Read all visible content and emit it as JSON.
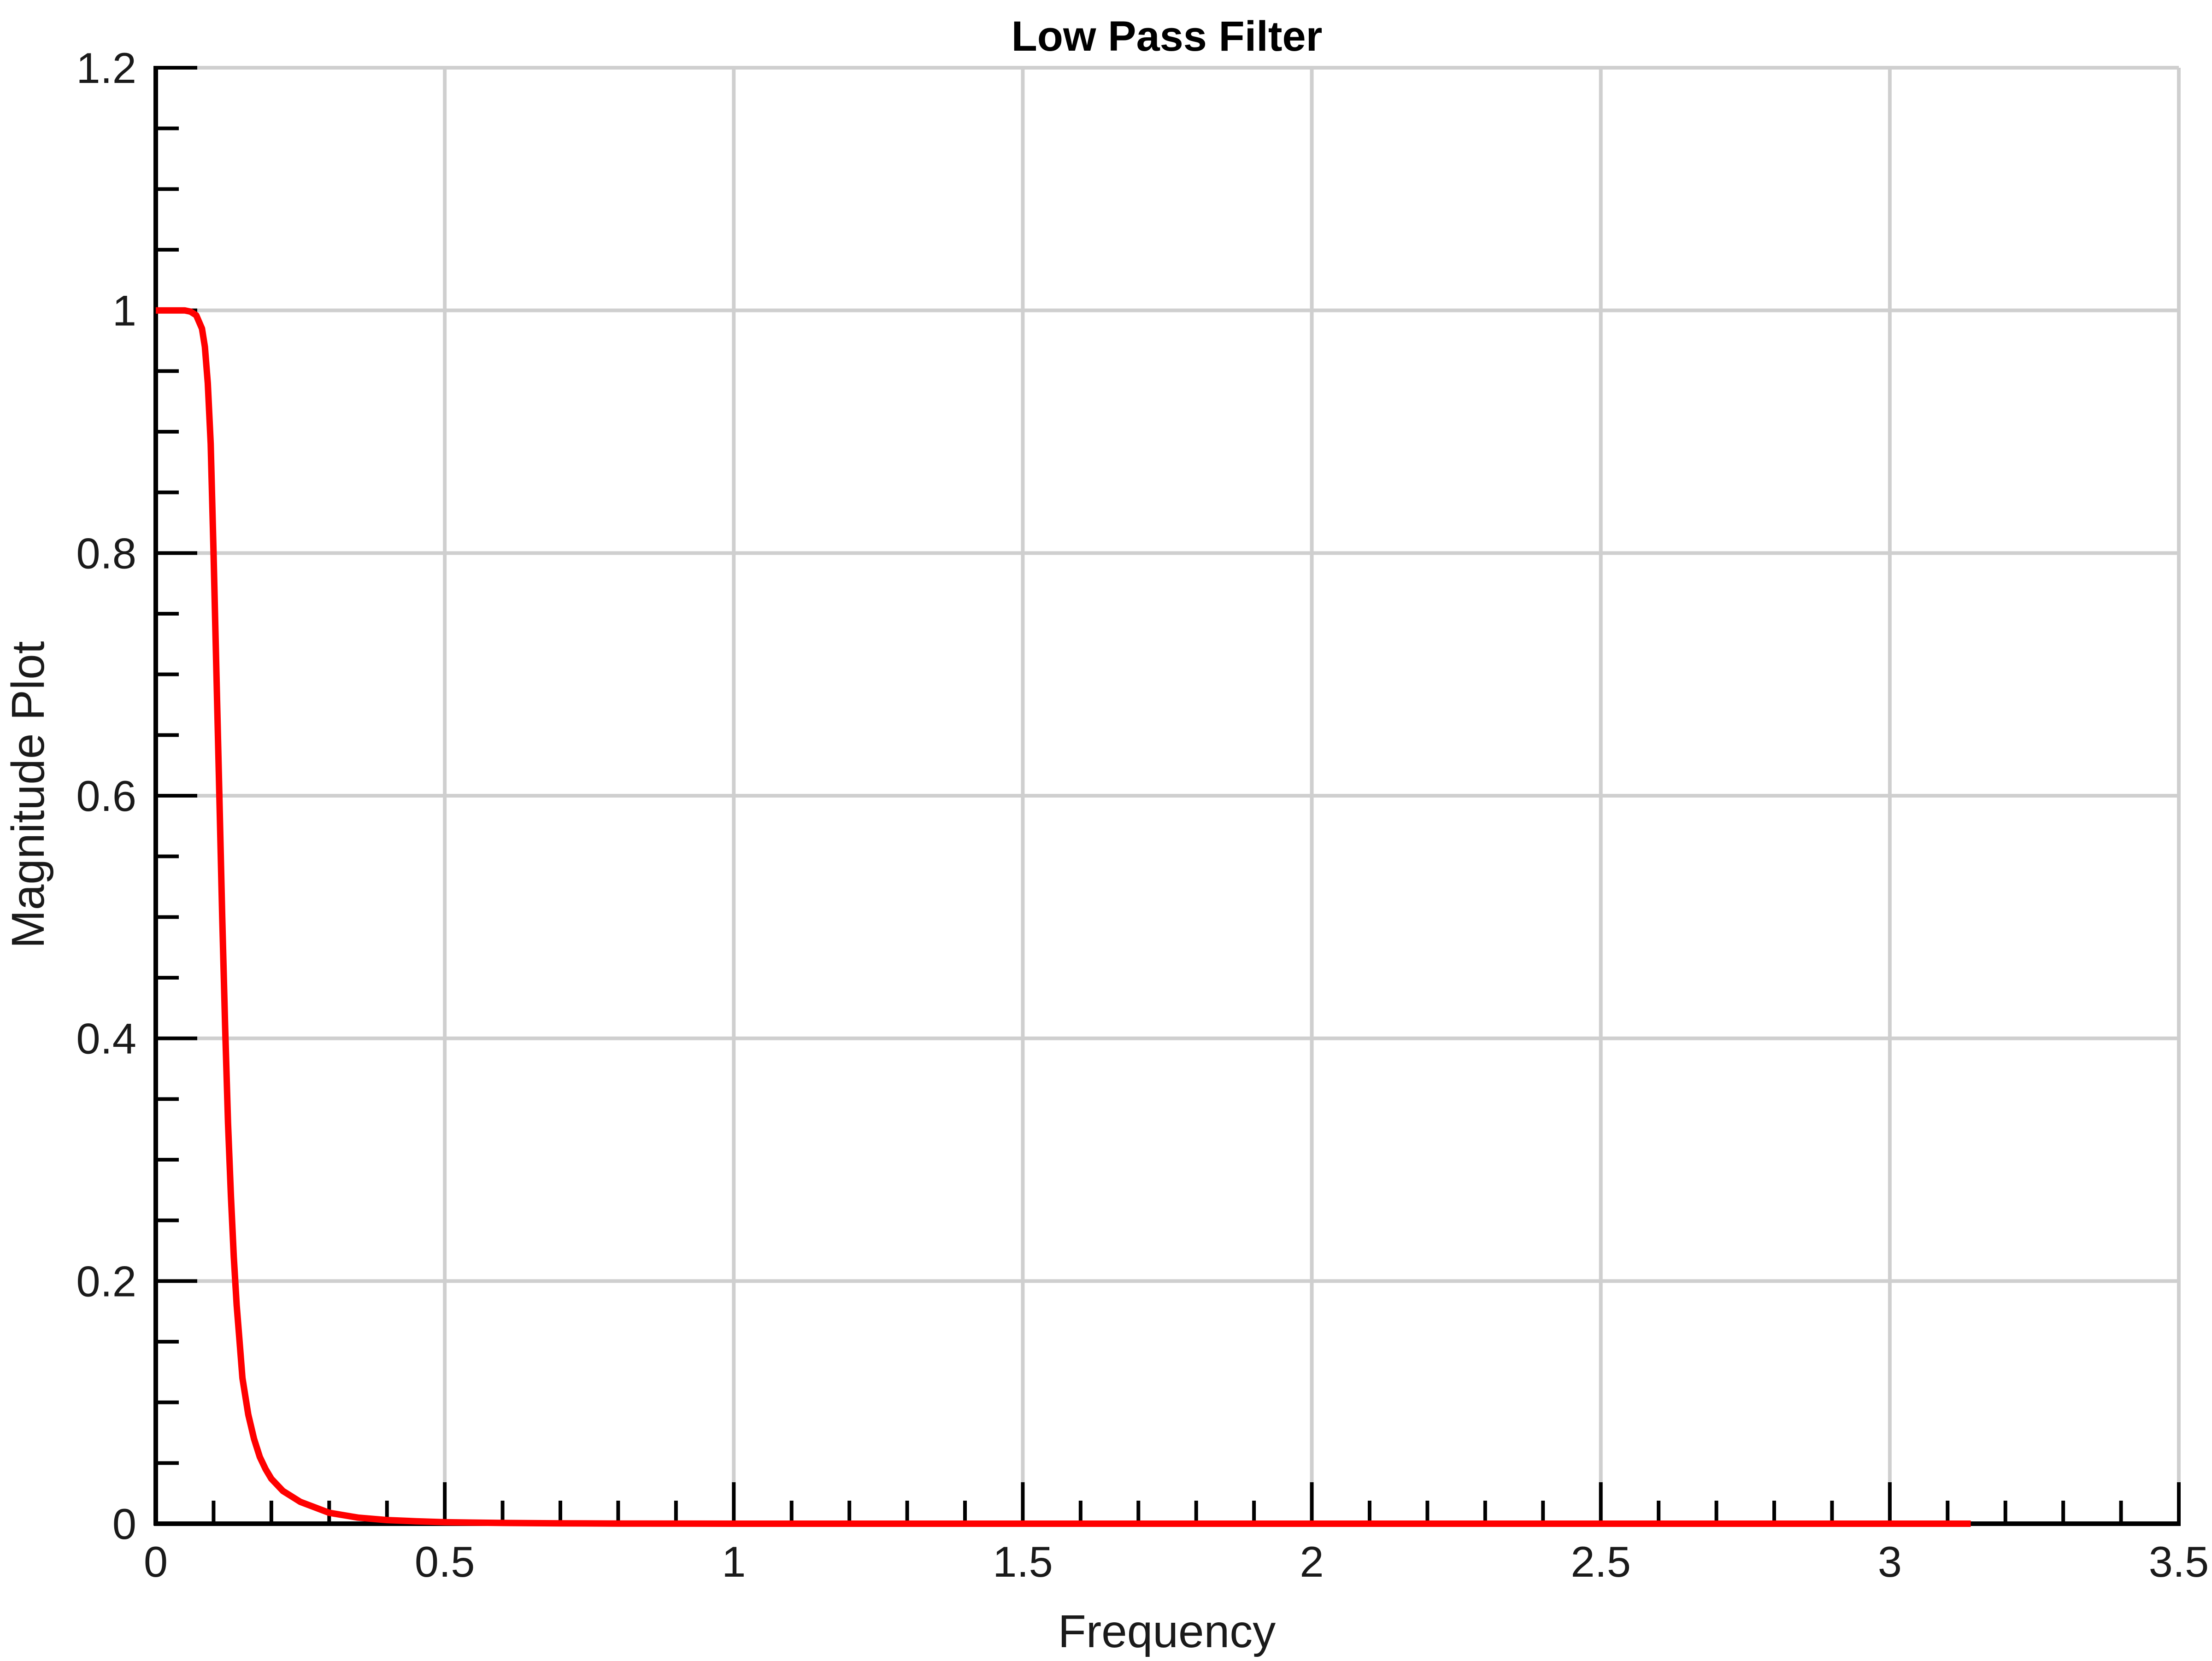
{
  "chart_data": {
    "type": "line",
    "title": "Low Pass Filter",
    "xlabel": "Frequency",
    "ylabel": "Magnitude Plot",
    "xlim": [
      0,
      3.5
    ],
    "ylim": [
      0,
      1.2
    ],
    "x_ticks": [
      "0",
      "0.5",
      "1",
      "1.5",
      "2",
      "2.5",
      "3",
      "3.5"
    ],
    "y_ticks": [
      "0",
      "0.2",
      "0.4",
      "0.6",
      "0.8",
      "1",
      "1.2"
    ],
    "grid": true,
    "legend": "none",
    "series": [
      {
        "color": "#ff0000",
        "x": [
          0,
          0.02,
          0.04,
          0.05,
          0.06,
          0.07,
          0.08,
          0.085,
          0.09,
          0.095,
          0.1,
          0.105,
          0.11,
          0.115,
          0.12,
          0.125,
          0.13,
          0.135,
          0.14,
          0.145,
          0.15,
          0.16,
          0.17,
          0.18,
          0.19,
          0.2,
          0.22,
          0.25,
          0.3,
          0.35,
          0.4,
          0.45,
          0.5,
          0.6,
          0.7,
          0.8,
          1.0,
          1.5,
          2.0,
          2.5,
          3.0,
          3.14
        ],
        "y": [
          1.0,
          1.0,
          1.0,
          1.0,
          0.999,
          0.996,
          0.985,
          0.97,
          0.94,
          0.89,
          0.8,
          0.7,
          0.6,
          0.5,
          0.41,
          0.33,
          0.27,
          0.22,
          0.18,
          0.15,
          0.12,
          0.09,
          0.07,
          0.055,
          0.045,
          0.037,
          0.027,
          0.018,
          0.009,
          0.005,
          0.003,
          0.002,
          0.0012,
          0.0006,
          0.0003,
          0.0001,
          0.0,
          0.0,
          0.0,
          0.0,
          0.0,
          0.0
        ]
      }
    ]
  }
}
